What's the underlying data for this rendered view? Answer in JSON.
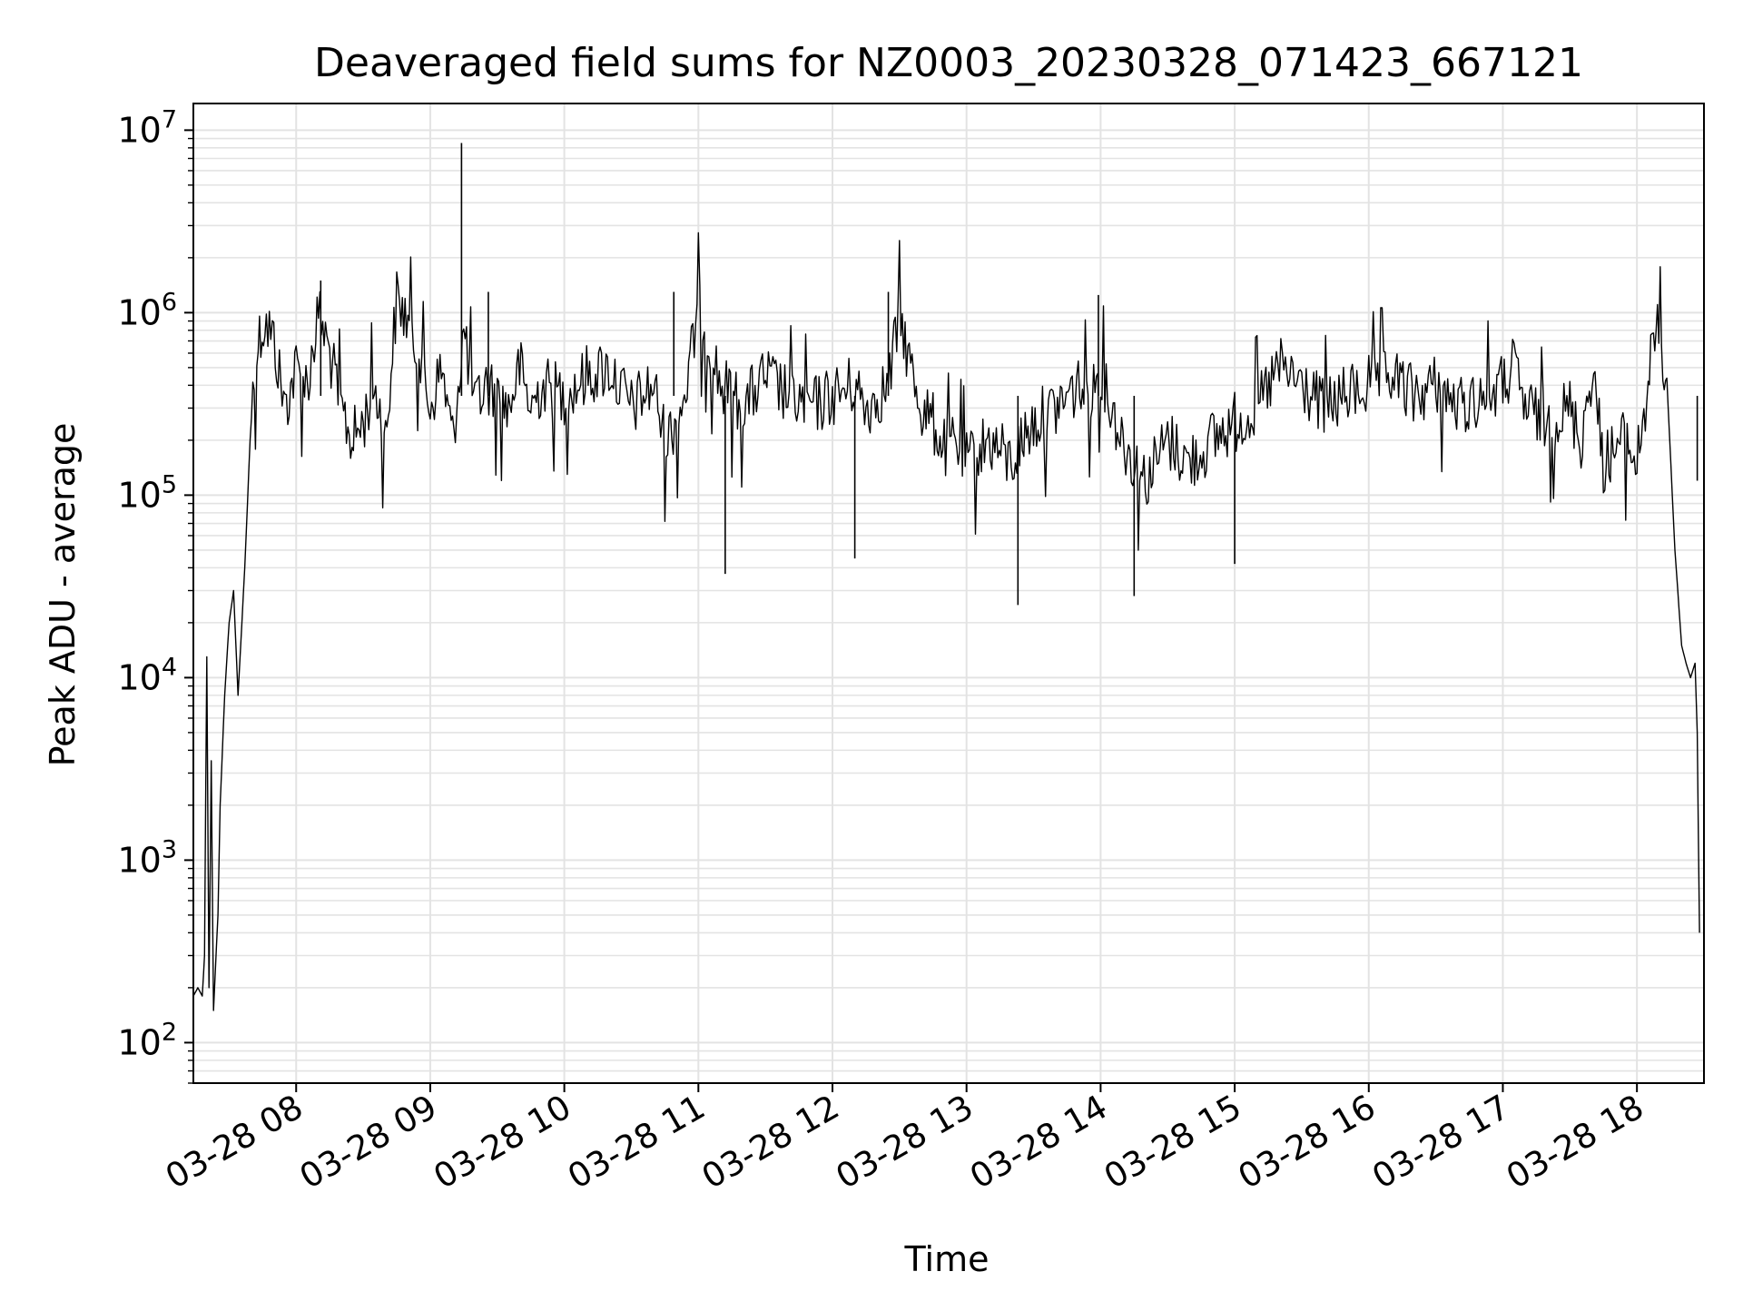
{
  "chart_data": {
    "type": "line",
    "title": "Deaveraged field sums for NZ0003_20230328_071423_667121",
    "xlabel": "Time",
    "ylabel": "Peak ADU - average",
    "yscale": "log",
    "grid": true,
    "grid_minor": true,
    "xlim": [
      "2023-03-28 07:14",
      "2023-03-28 18:30"
    ],
    "ylim": [
      60,
      14000000
    ],
    "x_ticks": [
      "2023-03-28 08:00",
      "2023-03-28 09:00",
      "2023-03-28 10:00",
      "2023-03-28 11:00",
      "2023-03-28 12:00",
      "2023-03-28 13:00",
      "2023-03-28 14:00",
      "2023-03-28 15:00",
      "2023-03-28 16:00",
      "2023-03-28 17:00",
      "2023-03-28 18:00"
    ],
    "x_tick_labels": [
      "03-28 08",
      "03-28 09",
      "03-28 10",
      "03-28 11",
      "03-28 12",
      "03-28 13",
      "03-28 14",
      "03-28 15",
      "03-28 16",
      "03-28 17",
      "03-28 18"
    ],
    "y_ticks": [
      100,
      1000,
      10000,
      100000,
      1000000,
      10000000
    ],
    "y_tick_labels": [
      {
        "base": "10",
        "exp": "2"
      },
      {
        "base": "10",
        "exp": "3"
      },
      {
        "base": "10",
        "exp": "4"
      },
      {
        "base": "10",
        "exp": "5"
      },
      {
        "base": "10",
        "exp": "6"
      },
      {
        "base": "10",
        "exp": "7"
      }
    ],
    "line_color": "#000000",
    "series": [
      {
        "x": [
          "2023-03-28 07:14",
          "2023-03-28 07:16",
          "2023-03-28 07:18",
          "2023-03-28 07:19",
          "2023-03-28 07:20",
          "2023-03-28 07:21",
          "2023-03-28 07:22",
          "2023-03-28 07:23",
          "2023-03-28 07:25",
          "2023-03-28 07:26",
          "2023-03-28 07:28",
          "2023-03-28 07:30",
          "2023-03-28 07:32",
          "2023-03-28 07:34",
          "2023-03-28 07:37",
          "2023-03-28 07:40",
          "2023-03-28 07:43",
          "2023-03-28 07:46",
          "2023-03-28 07:50",
          "2023-03-28 07:55",
          "2023-03-28 08:00",
          "2023-03-28 08:05",
          "2023-03-28 08:10",
          "2023-03-28 08:15",
          "2023-03-28 08:20",
          "2023-03-28 08:25",
          "2023-03-28 08:30",
          "2023-03-28 08:35",
          "2023-03-28 08:40",
          "2023-03-28 08:45",
          "2023-03-28 08:50",
          "2023-03-28 08:55",
          "2023-03-28 09:00",
          "2023-03-28 09:05",
          "2023-03-28 09:10",
          "2023-03-28 09:15",
          "2023-03-28 09:20",
          "2023-03-28 09:25",
          "2023-03-28 09:30",
          "2023-03-28 09:35",
          "2023-03-28 09:40",
          "2023-03-28 09:45",
          "2023-03-28 09:50",
          "2023-03-28 10:00",
          "2023-03-28 10:10",
          "2023-03-28 10:20",
          "2023-03-28 10:30",
          "2023-03-28 10:40",
          "2023-03-28 10:45",
          "2023-03-28 10:50",
          "2023-03-28 10:55",
          "2023-03-28 11:00",
          "2023-03-28 11:10",
          "2023-03-28 11:15",
          "2023-03-28 11:20",
          "2023-03-28 11:30",
          "2023-03-28 11:40",
          "2023-03-28 11:50",
          "2023-03-28 12:00",
          "2023-03-28 12:10",
          "2023-03-28 12:15",
          "2023-03-28 12:20",
          "2023-03-28 12:25",
          "2023-03-28 12:30",
          "2023-03-28 12:35",
          "2023-03-28 12:40",
          "2023-03-28 12:45",
          "2023-03-28 12:50",
          "2023-03-28 12:55",
          "2023-03-28 13:00",
          "2023-03-28 13:10",
          "2023-03-28 13:20",
          "2023-03-28 13:25",
          "2023-03-28 13:30",
          "2023-03-28 13:40",
          "2023-03-28 13:50",
          "2023-03-28 13:55",
          "2023-03-28 14:00",
          "2023-03-28 14:05",
          "2023-03-28 14:10",
          "2023-03-28 14:15",
          "2023-03-28 14:20",
          "2023-03-28 14:30",
          "2023-03-28 14:40",
          "2023-03-28 14:50",
          "2023-03-28 15:00",
          "2023-03-28 15:10",
          "2023-03-28 15:20",
          "2023-03-28 15:30",
          "2023-03-28 15:40",
          "2023-03-28 15:50",
          "2023-03-28 16:00",
          "2023-03-28 16:10",
          "2023-03-28 16:20",
          "2023-03-28 16:30",
          "2023-03-28 16:40",
          "2023-03-28 16:50",
          "2023-03-28 17:00",
          "2023-03-28 17:05",
          "2023-03-28 17:10",
          "2023-03-28 17:20",
          "2023-03-28 17:30",
          "2023-03-28 17:35",
          "2023-03-28 17:40",
          "2023-03-28 17:45",
          "2023-03-28 17:50",
          "2023-03-28 17:55",
          "2023-03-28 18:00",
          "2023-03-28 18:05",
          "2023-03-28 18:08",
          "2023-03-28 18:11",
          "2023-03-28 18:14",
          "2023-03-28 18:17",
          "2023-03-28 18:20",
          "2023-03-28 18:22",
          "2023-03-28 18:24",
          "2023-03-28 18:26",
          "2023-03-28 18:27",
          "2023-03-28 18:28"
        ],
        "y": [
          180,
          200,
          180,
          300,
          13000,
          200,
          3500,
          150,
          500,
          2000,
          8000,
          20000,
          30000,
          8000,
          40000,
          300000,
          700000,
          900000,
          700000,
          300000,
          500000,
          400000,
          1000000,
          600000,
          300000,
          200000,
          250000,
          400000,
          200000,
          1200000,
          900000,
          600000,
          300000,
          500000,
          200000,
          800000,
          300000,
          400000,
          350000,
          300000,
          500000,
          300000,
          400000,
          350000,
          450000,
          500000,
          300000,
          400000,
          200000,
          250000,
          400000,
          1100000,
          400000,
          350000,
          300000,
          450000,
          350000,
          300000,
          350000,
          400000,
          300000,
          350000,
          400000,
          1000000,
          500000,
          300000,
          250000,
          180000,
          200000,
          150000,
          200000,
          150000,
          200000,
          250000,
          300000,
          400000,
          350000,
          500000,
          300000,
          200000,
          150000,
          120000,
          200000,
          150000,
          200000,
          250000,
          300000,
          500000,
          400000,
          300000,
          350000,
          400000,
          450000,
          350000,
          400000,
          300000,
          350000,
          400000,
          500000,
          300000,
          250000,
          300000,
          200000,
          500000,
          150000,
          180000,
          200000,
          150000,
          400000,
          800000,
          700000,
          300000,
          50000,
          15000,
          12000,
          10000,
          12000,
          5000,
          400
        ]
      }
    ],
    "spikes": [
      {
        "x": "2023-03-28 09:14",
        "y": 8500000
      },
      {
        "x": "2023-03-28 08:11",
        "y": 1500000
      },
      {
        "x": "2023-03-28 09:26",
        "y": 1300000
      },
      {
        "x": "2023-03-28 10:49",
        "y": 1300000
      },
      {
        "x": "2023-03-28 11:12",
        "y": 37000
      },
      {
        "x": "2023-03-28 12:10",
        "y": 45000
      },
      {
        "x": "2023-03-28 12:25",
        "y": 1300000
      },
      {
        "x": "2023-03-28 13:23",
        "y": 25000
      },
      {
        "x": "2023-03-28 13:59",
        "y": 1250000
      },
      {
        "x": "2023-03-28 14:15",
        "y": 28000
      },
      {
        "x": "2023-03-28 15:00",
        "y": 42000
      },
      {
        "x": "2023-03-28 18:27",
        "y": 120000
      }
    ]
  }
}
